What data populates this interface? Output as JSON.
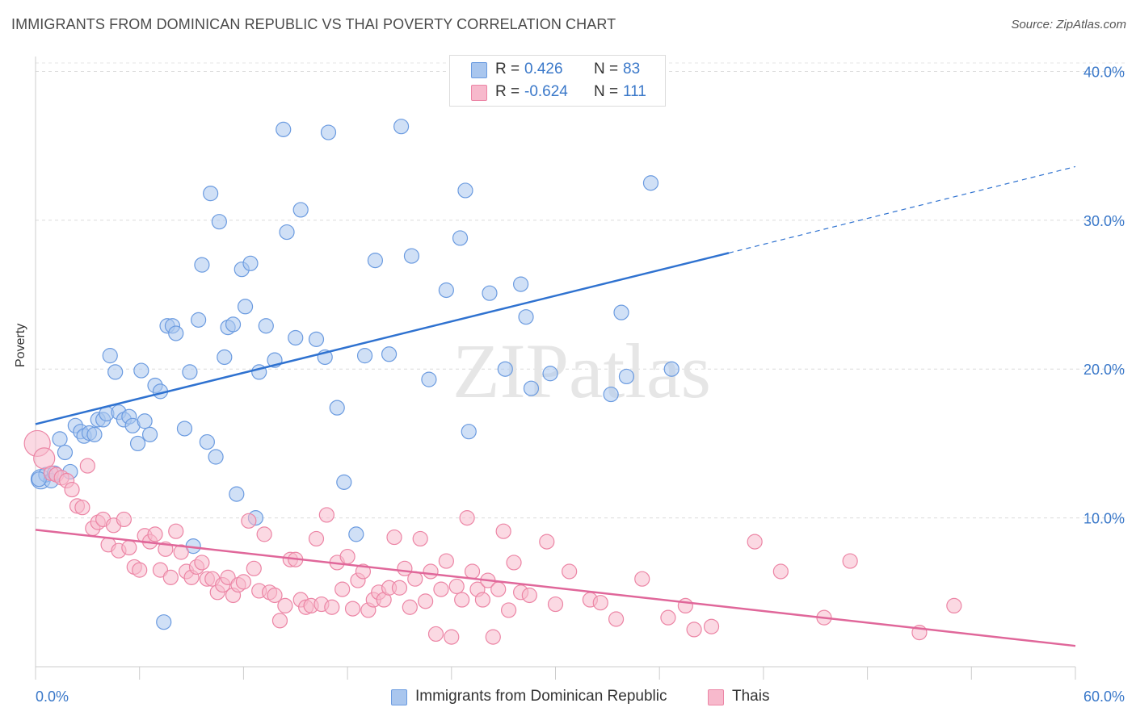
{
  "title": "IMMIGRANTS FROM DOMINICAN REPUBLIC VS THAI POVERTY CORRELATION CHART",
  "source": "Source: ZipAtlas.com",
  "watermark": "ZIPatlas",
  "stats": [
    {
      "r_label": "R =",
      "r_value": "0.426",
      "n_label": "N =",
      "n_value": "83",
      "color": "#a9c6ee",
      "border": "#6b9be0"
    },
    {
      "r_label": "R =",
      "r_value": "-0.624",
      "n_label": "N =",
      "n_value": "111",
      "color": "#f7b9cc",
      "border": "#ec85a5"
    }
  ],
  "legend": [
    {
      "label": "Immigrants from Dominican Republic",
      "color": "#a9c6ee",
      "border": "#6b9be0"
    },
    {
      "label": "Thais",
      "color": "#f7b9cc",
      "border": "#ec85a5"
    }
  ],
  "chart_data": {
    "type": "scatter",
    "title": "IMMIGRANTS FROM DOMINICAN REPUBLIC VS THAI POVERTY CORRELATION CHART",
    "xlabel": "",
    "ylabel": "Poverty",
    "xlim": [
      0,
      60
    ],
    "ylim": [
      0,
      41
    ],
    "x_tick_labels": [
      "0.0%",
      "60.0%"
    ],
    "y_ticks": [
      10,
      20,
      30,
      40
    ],
    "y_tick_labels": [
      "10.0%",
      "20.0%",
      "30.0%",
      "40.0%"
    ],
    "grid": "horizontal dashed",
    "series": [
      {
        "name": "Immigrants from Dominican Republic",
        "color": "#6b9be0",
        "fill": "#a9c6ee",
        "trend": {
          "x0": 0,
          "y0": 16.3,
          "x1": 40,
          "y1": 27.8,
          "dash_to_x": 60,
          "dash_to_y": 33.6,
          "color": "#2f72d0"
        },
        "points": [
          [
            0.3,
            12.6
          ],
          [
            0.6,
            12.9
          ],
          [
            0.9,
            12.5
          ],
          [
            1.1,
            13.0
          ],
          [
            1.4,
            15.3
          ],
          [
            1.7,
            14.4
          ],
          [
            2.0,
            13.1
          ],
          [
            2.3,
            16.2
          ],
          [
            2.6,
            15.8
          ],
          [
            2.8,
            15.5
          ],
          [
            3.1,
            15.7
          ],
          [
            3.4,
            15.6
          ],
          [
            3.6,
            16.6
          ],
          [
            3.9,
            16.6
          ],
          [
            4.1,
            17.0
          ],
          [
            4.3,
            20.9
          ],
          [
            4.6,
            19.8
          ],
          [
            4.8,
            17.1
          ],
          [
            5.1,
            16.6
          ],
          [
            5.4,
            16.8
          ],
          [
            5.6,
            16.2
          ],
          [
            5.9,
            15.0
          ],
          [
            6.1,
            19.9
          ],
          [
            6.3,
            16.5
          ],
          [
            6.6,
            15.6
          ],
          [
            6.9,
            18.9
          ],
          [
            7.2,
            18.5
          ],
          [
            7.6,
            22.9
          ],
          [
            7.9,
            22.9
          ],
          [
            8.1,
            22.4
          ],
          [
            8.6,
            16.0
          ],
          [
            8.9,
            19.8
          ],
          [
            9.1,
            8.1
          ],
          [
            9.4,
            23.3
          ],
          [
            9.6,
            27.0
          ],
          [
            9.9,
            15.1
          ],
          [
            10.1,
            31.8
          ],
          [
            10.4,
            14.1
          ],
          [
            10.6,
            29.9
          ],
          [
            10.9,
            20.8
          ],
          [
            11.1,
            22.8
          ],
          [
            11.4,
            23.0
          ],
          [
            11.6,
            11.6
          ],
          [
            11.9,
            26.7
          ],
          [
            12.1,
            24.2
          ],
          [
            12.4,
            27.1
          ],
          [
            12.7,
            10.0
          ],
          [
            12.9,
            19.8
          ],
          [
            13.3,
            22.9
          ],
          [
            13.8,
            20.6
          ],
          [
            14.3,
            36.1
          ],
          [
            14.5,
            29.2
          ],
          [
            15.0,
            22.1
          ],
          [
            15.3,
            30.7
          ],
          [
            16.2,
            22.0
          ],
          [
            16.7,
            20.8
          ],
          [
            16.9,
            35.9
          ],
          [
            17.4,
            17.4
          ],
          [
            17.8,
            12.4
          ],
          [
            18.5,
            8.9
          ],
          [
            19.0,
            20.9
          ],
          [
            19.6,
            27.3
          ],
          [
            20.4,
            21.0
          ],
          [
            21.1,
            36.3
          ],
          [
            21.7,
            27.6
          ],
          [
            22.7,
            19.3
          ],
          [
            23.7,
            25.3
          ],
          [
            24.5,
            28.8
          ],
          [
            24.8,
            32.0
          ],
          [
            25.0,
            15.8
          ],
          [
            26.2,
            25.1
          ],
          [
            27.1,
            20.0
          ],
          [
            28.0,
            25.7
          ],
          [
            28.3,
            23.5
          ],
          [
            28.6,
            18.7
          ],
          [
            29.7,
            19.7
          ],
          [
            33.2,
            18.3
          ],
          [
            33.8,
            23.8
          ],
          [
            34.1,
            19.5
          ],
          [
            35.5,
            32.5
          ],
          [
            36.7,
            20.0
          ],
          [
            7.4,
            3.0
          ],
          [
            0.2,
            12.6
          ]
        ]
      },
      {
        "name": "Thais",
        "color": "#ec85a5",
        "fill": "#f7b9cc",
        "trend": {
          "x0": 0,
          "y0": 9.2,
          "x1": 60,
          "y1": 1.4,
          "color": "#e0679a"
        },
        "points": [
          [
            0.1,
            15.0
          ],
          [
            0.5,
            14.0
          ],
          [
            0.9,
            13.0
          ],
          [
            1.2,
            12.9
          ],
          [
            1.5,
            12.7
          ],
          [
            1.8,
            12.5
          ],
          [
            2.1,
            11.9
          ],
          [
            2.4,
            10.8
          ],
          [
            2.7,
            10.7
          ],
          [
            3.0,
            13.5
          ],
          [
            3.3,
            9.3
          ],
          [
            3.6,
            9.7
          ],
          [
            3.9,
            9.9
          ],
          [
            4.2,
            8.2
          ],
          [
            4.5,
            9.5
          ],
          [
            4.8,
            7.8
          ],
          [
            5.1,
            9.9
          ],
          [
            5.4,
            8.0
          ],
          [
            5.7,
            6.7
          ],
          [
            6.0,
            6.5
          ],
          [
            6.3,
            8.8
          ],
          [
            6.6,
            8.4
          ],
          [
            6.9,
            8.9
          ],
          [
            7.2,
            6.5
          ],
          [
            7.5,
            7.9
          ],
          [
            7.8,
            6.0
          ],
          [
            8.1,
            9.1
          ],
          [
            8.4,
            7.7
          ],
          [
            8.7,
            6.4
          ],
          [
            9.0,
            6.0
          ],
          [
            9.3,
            6.7
          ],
          [
            9.6,
            7.0
          ],
          [
            9.9,
            5.9
          ],
          [
            10.2,
            5.9
          ],
          [
            10.5,
            5.0
          ],
          [
            10.8,
            5.5
          ],
          [
            11.1,
            6.0
          ],
          [
            11.4,
            4.8
          ],
          [
            11.7,
            5.5
          ],
          [
            12.0,
            5.7
          ],
          [
            12.3,
            9.8
          ],
          [
            12.6,
            6.6
          ],
          [
            12.9,
            5.1
          ],
          [
            13.2,
            8.9
          ],
          [
            13.5,
            5.0
          ],
          [
            13.8,
            4.8
          ],
          [
            14.1,
            3.1
          ],
          [
            14.4,
            4.1
          ],
          [
            14.7,
            7.2
          ],
          [
            15.0,
            7.2
          ],
          [
            15.3,
            4.5
          ],
          [
            15.6,
            4.0
          ],
          [
            15.9,
            4.1
          ],
          [
            16.2,
            8.6
          ],
          [
            16.5,
            4.2
          ],
          [
            16.8,
            10.2
          ],
          [
            17.1,
            4.0
          ],
          [
            17.4,
            7.0
          ],
          [
            17.7,
            5.2
          ],
          [
            18.0,
            7.4
          ],
          [
            18.3,
            3.9
          ],
          [
            18.6,
            5.8
          ],
          [
            18.9,
            6.4
          ],
          [
            19.2,
            3.8
          ],
          [
            19.5,
            4.5
          ],
          [
            19.8,
            5.0
          ],
          [
            20.1,
            4.5
          ],
          [
            20.4,
            5.3
          ],
          [
            20.7,
            8.7
          ],
          [
            21.0,
            5.3
          ],
          [
            21.3,
            6.6
          ],
          [
            21.6,
            4.0
          ],
          [
            21.9,
            5.9
          ],
          [
            22.2,
            8.6
          ],
          [
            22.5,
            4.4
          ],
          [
            22.8,
            6.4
          ],
          [
            23.1,
            2.2
          ],
          [
            23.4,
            5.2
          ],
          [
            23.7,
            7.1
          ],
          [
            24.0,
            2.0
          ],
          [
            24.3,
            5.4
          ],
          [
            24.6,
            4.5
          ],
          [
            24.9,
            10.0
          ],
          [
            25.2,
            6.4
          ],
          [
            25.5,
            5.2
          ],
          [
            25.8,
            4.5
          ],
          [
            26.1,
            5.8
          ],
          [
            26.4,
            2.0
          ],
          [
            26.7,
            5.2
          ],
          [
            27.0,
            9.1
          ],
          [
            27.3,
            3.8
          ],
          [
            27.6,
            7.0
          ],
          [
            28.0,
            5.0
          ],
          [
            28.5,
            4.8
          ],
          [
            29.5,
            8.4
          ],
          [
            30.0,
            4.2
          ],
          [
            30.8,
            6.4
          ],
          [
            32.0,
            4.5
          ],
          [
            32.6,
            4.3
          ],
          [
            33.5,
            3.2
          ],
          [
            35.0,
            5.9
          ],
          [
            36.5,
            3.3
          ],
          [
            37.5,
            4.1
          ],
          [
            38.0,
            2.5
          ],
          [
            39.0,
            2.7
          ],
          [
            41.5,
            8.4
          ],
          [
            43.0,
            6.4
          ],
          [
            45.5,
            3.3
          ],
          [
            47.0,
            7.1
          ],
          [
            51.0,
            2.3
          ],
          [
            53.0,
            4.1
          ]
        ]
      }
    ]
  }
}
